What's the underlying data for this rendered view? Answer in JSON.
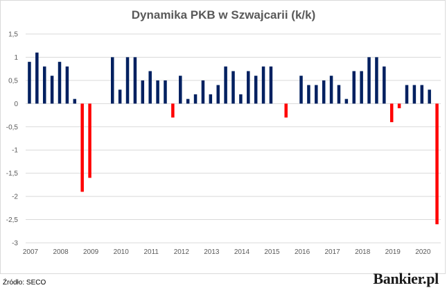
{
  "chart_data": {
    "type": "bar",
    "title": "Dynamika PKB w Szwajcarii (k/k)",
    "xlabel": "",
    "ylabel": "",
    "ylim": [
      -3,
      1.5
    ],
    "yticks": [
      "1,5",
      "1",
      "0,5",
      "0",
      "-0,5",
      "-1",
      "-1,5",
      "-2",
      "-2,5",
      "-3"
    ],
    "ytick_values": [
      1.5,
      1,
      0.5,
      0,
      -0.5,
      -1,
      -1.5,
      -2,
      -2.5,
      -3
    ],
    "year_labels": [
      "2007",
      "2008",
      "2009",
      "2010",
      "2011",
      "2012",
      "2013",
      "2014",
      "2015",
      "2016",
      "2017",
      "2018",
      "2019",
      "2020"
    ],
    "grid": true,
    "colors": {
      "positive": "#002060",
      "negative": "#ff0000"
    },
    "values": [
      0.9,
      1.1,
      0.8,
      0.6,
      0.9,
      0.8,
      0.1,
      -1.9,
      -1.6,
      0.0,
      0.0,
      1.0,
      0.3,
      1.0,
      1.0,
      0.5,
      0.7,
      0.5,
      0.5,
      -0.3,
      0.6,
      0.1,
      0.2,
      0.5,
      0.2,
      0.4,
      0.8,
      0.7,
      0.2,
      0.7,
      0.6,
      0.8,
      0.8,
      0.0,
      -0.3,
      0.0,
      0.6,
      0.4,
      0.4,
      0.5,
      0.6,
      0.4,
      0.1,
      0.7,
      0.7,
      1.0,
      1.0,
      0.8,
      -0.4,
      -0.1,
      0.4,
      0.4,
      0.4,
      0.3,
      -2.6
    ]
  },
  "footer": {
    "source": "Źródło: SECO",
    "logo": "Bankier.pl"
  }
}
